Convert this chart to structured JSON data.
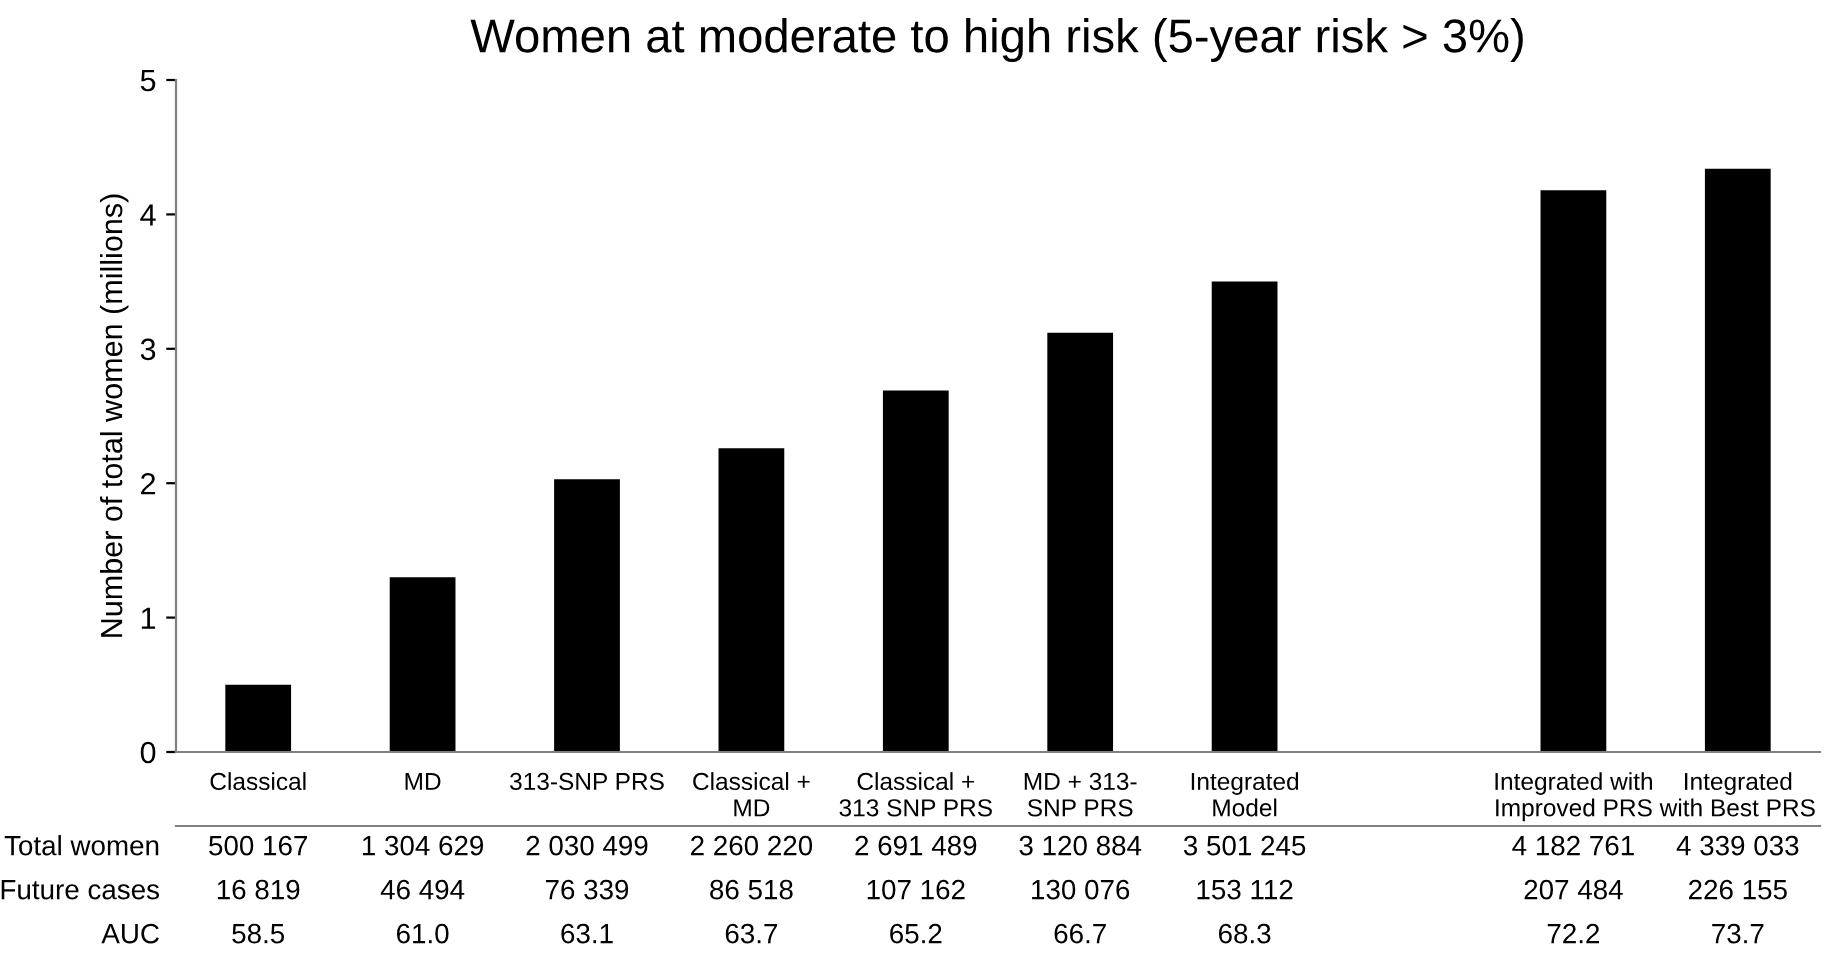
{
  "chart_data": {
    "type": "bar",
    "title": "Women at moderate to high risk (5-year risk > 3%)",
    "ylabel": "Number of total women (millions)",
    "categories": [
      "Classical",
      "MD",
      "313-SNP PRS",
      "Classical +\nMD",
      "Classical +\n313 SNP PRS",
      "MD + 313-\nSNP PRS",
      "Integrated\nModel",
      null,
      "Integrated with\nImproved PRS",
      "Integrated\nwith Best PRS"
    ],
    "values": [
      0.5,
      1.3,
      2.03,
      2.26,
      2.69,
      3.12,
      3.5,
      null,
      4.18,
      4.34
    ],
    "color": "#000000",
    "ylim": [
      0,
      5
    ],
    "yticks": [
      0,
      1,
      2,
      3,
      4,
      5
    ],
    "annotations": [
      "Total women",
      "500 167",
      "1 304 629",
      "2 030 499",
      "2 260 220",
      "2 691 489",
      "3 120 884",
      "3 501 245",
      "4 182 761",
      "4 339 033",
      "Future cases",
      "16 819",
      "46 494",
      "76 339",
      "86 518",
      "107 162",
      "130 076",
      "153 112",
      "207 484",
      "226 155",
      "AUC",
      "58.5",
      "61.0",
      "63.1",
      "63.7",
      "65.2",
      "66.7",
      "68.3",
      "72.2",
      "73.7"
    ]
  }
}
